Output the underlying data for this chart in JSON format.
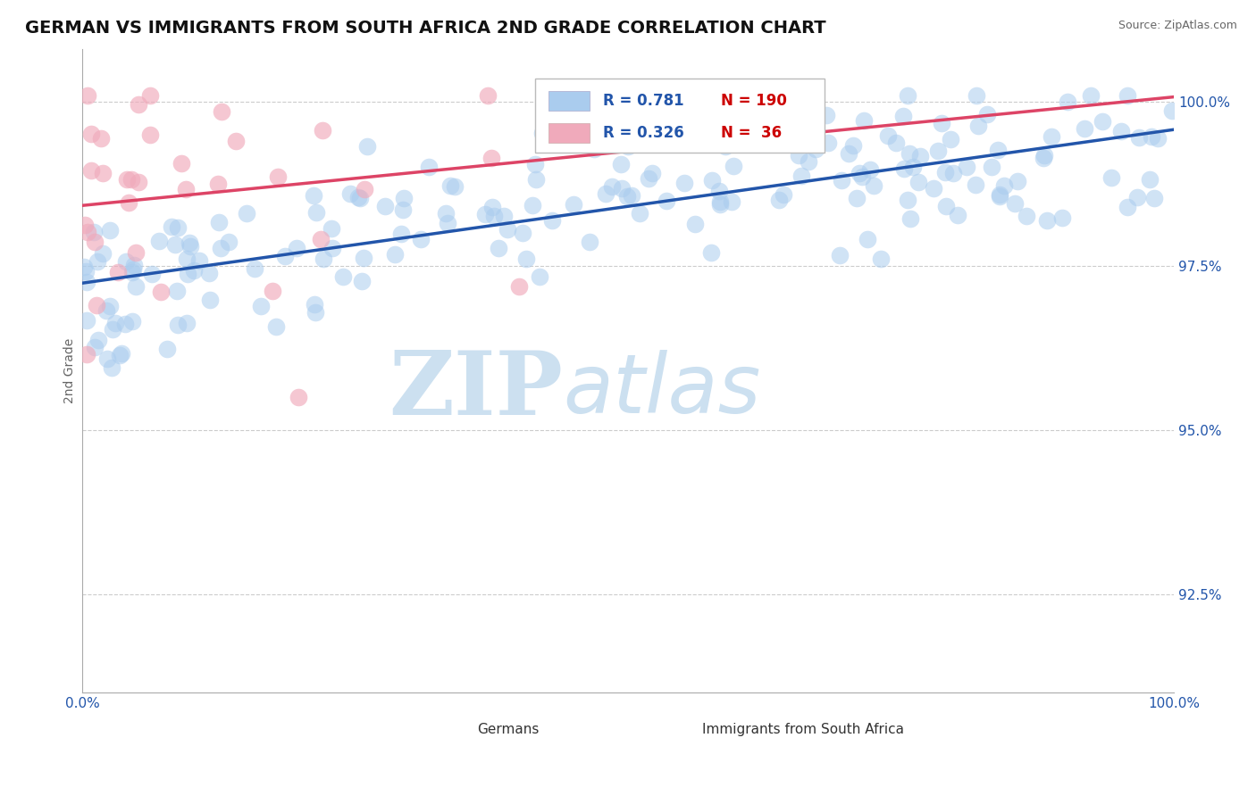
{
  "title": "GERMAN VS IMMIGRANTS FROM SOUTH AFRICA 2ND GRADE CORRELATION CHART",
  "source": "Source: ZipAtlas.com",
  "ylabel": "2nd Grade",
  "xlim": [
    0.0,
    1.0
  ],
  "ylim": [
    0.91,
    1.008
  ],
  "yticks": [
    0.925,
    0.95,
    0.975,
    1.0
  ],
  "ytick_labels": [
    "92.5%",
    "95.0%",
    "97.5%",
    "100.0%"
  ],
  "xtick_labels_left": "0.0%",
  "xtick_labels_right": "100.0%",
  "blue_color": "#aaccee",
  "pink_color": "#f0aabb",
  "blue_line_color": "#2255aa",
  "pink_line_color": "#dd4466",
  "blue_R": 0.781,
  "blue_N": 190,
  "pink_R": 0.326,
  "pink_N": 36,
  "legend_R_color": "#2255aa",
  "legend_N_color": "#cc0000",
  "watermark_ZIP": "ZIP",
  "watermark_atlas": "atlas",
  "watermark_color": "#cce0f0",
  "background_color": "#ffffff",
  "grid_color": "#cccccc",
  "title_fontsize": 14,
  "axis_label_fontsize": 10,
  "tick_fontsize": 11
}
